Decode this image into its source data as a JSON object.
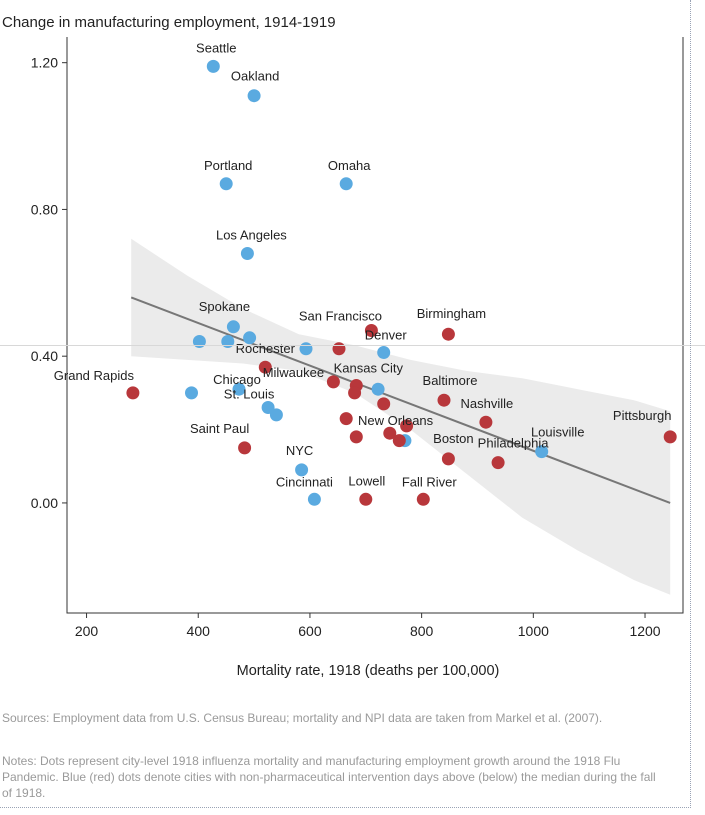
{
  "chart_data": {
    "type": "scatter",
    "title": "Change in manufacturing employment, 1914-1919",
    "xlabel": "Mortality rate, 1918 (deaths per 100,000)",
    "ylabel": "",
    "xlim": [
      165,
      1268
    ],
    "ylim": [
      -0.3,
      1.27
    ],
    "x_ticks": [
      200,
      400,
      600,
      800,
      1000,
      1200
    ],
    "y_ticks": [
      0.0,
      0.4,
      0.8,
      1.2
    ],
    "y_tick_labels": [
      "0.00",
      "0.40",
      "0.80",
      "1.20"
    ],
    "grid": false,
    "colors": {
      "blue": "#5aaae0",
      "red": "#b8373b",
      "trend": "#777777",
      "band": "#ebebeb"
    },
    "trend_line": {
      "x": [
        280,
        1245
      ],
      "y": [
        0.56,
        0.0
      ]
    },
    "confidence_band": {
      "x": [
        280,
        380,
        480,
        580,
        680,
        780,
        880,
        980,
        1080,
        1180,
        1245
      ],
      "lower": [
        0.4,
        0.39,
        0.38,
        0.36,
        0.3,
        0.2,
        0.08,
        -0.04,
        -0.13,
        -0.21,
        -0.25
      ],
      "upper": [
        0.72,
        0.62,
        0.53,
        0.46,
        0.43,
        0.39,
        0.36,
        0.34,
        0.31,
        0.28,
        0.25
      ]
    },
    "points": [
      {
        "name": "Seattle",
        "x": 427,
        "y": 1.19,
        "group": "blue"
      },
      {
        "name": "Oakland",
        "x": 500,
        "y": 1.11,
        "group": "blue"
      },
      {
        "name": "Portland",
        "x": 450,
        "y": 0.87,
        "group": "blue"
      },
      {
        "name": "Omaha",
        "x": 665,
        "y": 0.87,
        "group": "blue"
      },
      {
        "name": "Los Angeles",
        "x": 488,
        "y": 0.68,
        "group": "blue"
      },
      {
        "name": "Spokane",
        "x": 463,
        "y": 0.48,
        "group": "blue"
      },
      {
        "name": "",
        "x": 492,
        "y": 0.45,
        "group": "blue"
      },
      {
        "name": "",
        "x": 402,
        "y": 0.44,
        "group": "blue"
      },
      {
        "name": "",
        "x": 453,
        "y": 0.44,
        "group": "blue"
      },
      {
        "name": "",
        "x": 593,
        "y": 0.42,
        "group": "blue"
      },
      {
        "name": "Denver",
        "x": 732,
        "y": 0.41,
        "group": "blue"
      },
      {
        "name": "",
        "x": 388,
        "y": 0.3,
        "group": "blue"
      },
      {
        "name": "Chicago",
        "x": 473,
        "y": 0.31,
        "group": "blue"
      },
      {
        "name": "",
        "x": 722,
        "y": 0.31,
        "group": "blue"
      },
      {
        "name": "St. Louis",
        "x": 525,
        "y": 0.26,
        "group": "blue"
      },
      {
        "name": "",
        "x": 540,
        "y": 0.24,
        "group": "blue"
      },
      {
        "name": "",
        "x": 770,
        "y": 0.17,
        "group": "blue"
      },
      {
        "name": "Louisville",
        "x": 1015,
        "y": 0.14,
        "group": "blue"
      },
      {
        "name": "NYC",
        "x": 585,
        "y": 0.09,
        "group": "blue"
      },
      {
        "name": "Cincinnati",
        "x": 608,
        "y": 0.01,
        "group": "blue"
      },
      {
        "name": "Birmingham",
        "x": 848,
        "y": 0.46,
        "group": "red"
      },
      {
        "name": "San Francisco",
        "x": 710,
        "y": 0.47,
        "group": "red"
      },
      {
        "name": "",
        "x": 652,
        "y": 0.42,
        "group": "red"
      },
      {
        "name": "Rochester",
        "x": 520,
        "y": 0.37,
        "group": "red"
      },
      {
        "name": "Grand Rapids",
        "x": 283,
        "y": 0.3,
        "group": "red"
      },
      {
        "name": "Milwaukee",
        "x": 642,
        "y": 0.33,
        "group": "red"
      },
      {
        "name": "Kansas City",
        "x": 683,
        "y": 0.32,
        "group": "red"
      },
      {
        "name": "",
        "x": 680,
        "y": 0.3,
        "group": "red"
      },
      {
        "name": "",
        "x": 732,
        "y": 0.27,
        "group": "red"
      },
      {
        "name": "Baltimore",
        "x": 840,
        "y": 0.28,
        "group": "red"
      },
      {
        "name": "",
        "x": 665,
        "y": 0.23,
        "group": "red"
      },
      {
        "name": "New Orleans",
        "x": 773,
        "y": 0.21,
        "group": "red"
      },
      {
        "name": "Nashville",
        "x": 915,
        "y": 0.22,
        "group": "red"
      },
      {
        "name": "",
        "x": 683,
        "y": 0.18,
        "group": "red"
      },
      {
        "name": "",
        "x": 743,
        "y": 0.19,
        "group": "red"
      },
      {
        "name": "",
        "x": 760,
        "y": 0.17,
        "group": "red"
      },
      {
        "name": "Pittsburgh",
        "x": 1245,
        "y": 0.18,
        "group": "red"
      },
      {
        "name": "Saint Paul",
        "x": 483,
        "y": 0.15,
        "group": "red"
      },
      {
        "name": "Boston",
        "x": 848,
        "y": 0.12,
        "group": "red"
      },
      {
        "name": "Philadelphia",
        "x": 937,
        "y": 0.11,
        "group": "red"
      },
      {
        "name": "Lowell",
        "x": 700,
        "y": 0.01,
        "group": "red"
      },
      {
        "name": "Fall River",
        "x": 803,
        "y": 0.01,
        "group": "red"
      }
    ]
  },
  "footer": {
    "sources": "Sources: Employment data from U.S. Census Bureau; mortality and NPI data are taken from Markel et al. (2007).",
    "notes": "Notes: Dots represent city-level 1918 influenza mortality and manufacturing employment growth around the 1918 Flu Pandemic. Blue (red) dots denote cities with non-pharmaceutical intervention days above (below) the median during the fall of 1918."
  }
}
